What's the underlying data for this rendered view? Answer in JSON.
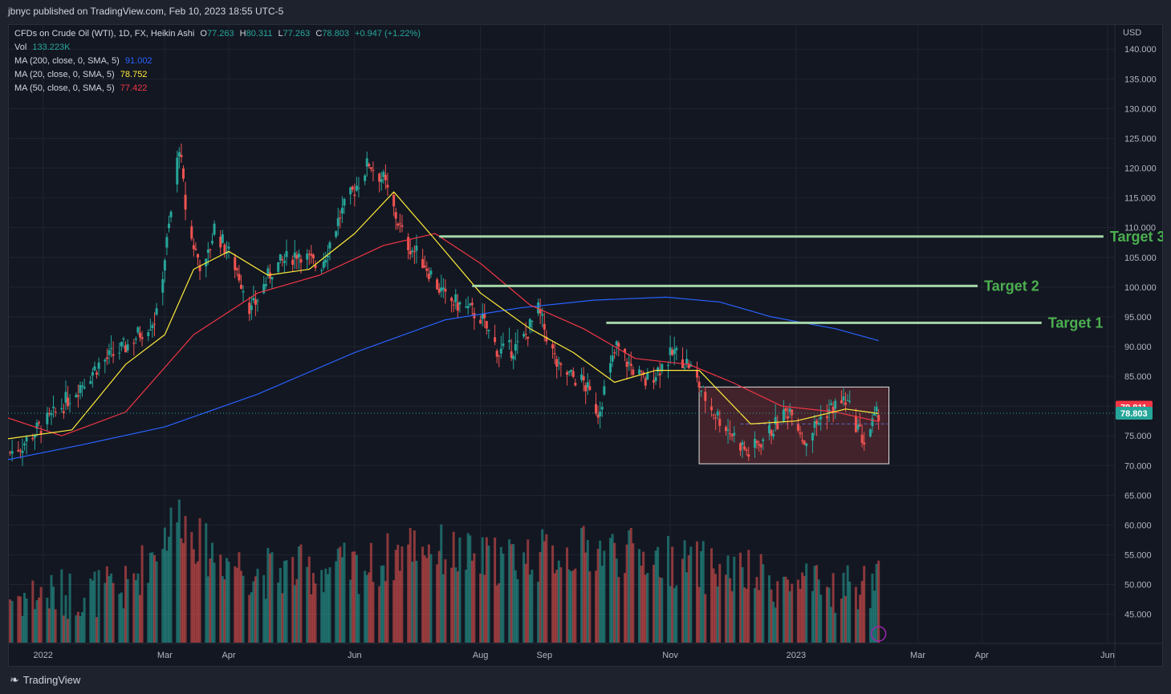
{
  "header": {
    "published": "jbnyc published on TradingView.com, Feb 10, 2023 18:55 UTC-5"
  },
  "legend": {
    "symbol": "CFDs on Crude Oil (WTI), 1D, FX, Heikin Ashi",
    "o_label": "O",
    "o_value": "77.263",
    "h_label": "H",
    "h_value": "80.311",
    "l_label": "L",
    "l_value": "77.263",
    "c_label": "C",
    "c_value": "78.803",
    "change": "+0.947 (+1.22%)",
    "vol_label": "Vol",
    "vol_value": "133.223K",
    "ma200_label": "MA (200, close, 0, SMA, 5)",
    "ma200_value": "91.002",
    "ma20_label": "MA (20, close, 0, SMA, 5)",
    "ma20_value": "78.752",
    "ma50_label": "MA (50, close, 0, SMA, 5)",
    "ma50_value": "77.422"
  },
  "footer": {
    "brand": "TradingView"
  },
  "colors": {
    "up": "#26a69a",
    "down": "#ef5350",
    "ma200": "#2962ff",
    "ma20": "#ffeb3b",
    "ma50": "#f23645",
    "target": "#a5d6a7",
    "target_text": "#4caf50"
  },
  "chart_data": {
    "type": "candlestick",
    "currency": "USD",
    "y_ticks": [
      "140.000",
      "135.000",
      "130.000",
      "125.000",
      "120.000",
      "115.000",
      "110.000",
      "105.000",
      "100.000",
      "95.000",
      "90.000",
      "85.000",
      "80.000",
      "75.000",
      "70.000",
      "65.000",
      "60.000",
      "55.000",
      "50.000",
      "45.000"
    ],
    "x_ticks": [
      "2022",
      "Mar",
      "Apr",
      "Jun",
      "Aug",
      "Sep",
      "Nov",
      "2023",
      "Mar",
      "Apr",
      "Jun"
    ],
    "ylim": [
      40.5,
      143
    ],
    "price_tags": [
      {
        "value": 79.811,
        "label": "79.811",
        "color": "#f23645"
      },
      {
        "value": 78.803,
        "label": "78.803",
        "color": "#26a69a"
      }
    ],
    "targets": [
      {
        "label": "Target 1",
        "value": 94.0,
        "from": "2022-10-01",
        "to": "2023-04-30"
      },
      {
        "label": "Target 2",
        "value": 100.2,
        "from": "2022-07-28",
        "to": "2023-03-30"
      },
      {
        "label": "Target 3",
        "value": 108.5,
        "from": "2022-07-12",
        "to": "2023-05-30"
      }
    ],
    "range_box": {
      "from": "2022-11-15",
      "to": "2023-02-15",
      "top": 83.2,
      "bottom": 70.3
    },
    "price_path": [
      [
        "2021-12-15",
        72
      ],
      [
        "2021-12-22",
        73.5
      ],
      [
        "2021-12-29",
        76
      ],
      [
        "2022-01-05",
        78
      ],
      [
        "2022-01-15",
        82
      ],
      [
        "2022-01-28",
        87
      ],
      [
        "2022-02-10",
        90
      ],
      [
        "2022-02-25",
        95
      ],
      [
        "2022-03-05",
        115
      ],
      [
        "2022-03-08",
        124
      ],
      [
        "2022-03-12",
        110
      ],
      [
        "2022-03-20",
        102
      ],
      [
        "2022-03-25",
        110
      ],
      [
        "2022-04-05",
        103
      ],
      [
        "2022-04-12",
        96
      ],
      [
        "2022-04-22",
        103
      ],
      [
        "2022-05-05",
        106
      ],
      [
        "2022-05-15",
        103
      ],
      [
        "2022-05-25",
        112
      ],
      [
        "2022-06-08",
        121
      ],
      [
        "2022-06-15",
        118
      ],
      [
        "2022-06-25",
        108
      ],
      [
        "2022-07-05",
        104
      ],
      [
        "2022-07-15",
        98
      ],
      [
        "2022-07-22",
        97
      ],
      [
        "2022-08-01",
        95
      ],
      [
        "2022-08-10",
        89
      ],
      [
        "2022-08-20",
        90
      ],
      [
        "2022-08-29",
        96
      ],
      [
        "2022-09-08",
        86
      ],
      [
        "2022-09-20",
        84
      ],
      [
        "2022-09-27",
        79
      ],
      [
        "2022-10-06",
        90
      ],
      [
        "2022-10-12",
        87
      ],
      [
        "2022-10-20",
        84
      ],
      [
        "2022-11-03",
        89
      ],
      [
        "2022-11-10",
        87
      ],
      [
        "2022-11-20",
        80
      ],
      [
        "2022-12-09",
        72
      ],
      [
        "2022-12-20",
        76
      ],
      [
        "2022-12-30",
        80
      ],
      [
        "2023-01-05",
        74
      ],
      [
        "2023-01-15",
        79
      ],
      [
        "2023-01-25",
        81
      ],
      [
        "2023-02-03",
        74
      ],
      [
        "2023-02-10",
        79
      ]
    ],
    "ma20_path": [
      [
        "2021-12-15",
        74.5
      ],
      [
        "2022-01-15",
        76
      ],
      [
        "2022-02-10",
        87
      ],
      [
        "2022-03-01",
        92
      ],
      [
        "2022-03-15",
        103
      ],
      [
        "2022-04-01",
        106
      ],
      [
        "2022-04-20",
        102
      ],
      [
        "2022-05-10",
        103
      ],
      [
        "2022-06-01",
        109
      ],
      [
        "2022-06-20",
        116
      ],
      [
        "2022-07-10",
        108
      ],
      [
        "2022-08-01",
        99
      ],
      [
        "2022-08-25",
        93
      ],
      [
        "2022-09-15",
        89
      ],
      [
        "2022-10-05",
        84
      ],
      [
        "2022-10-25",
        86
      ],
      [
        "2022-11-15",
        86
      ],
      [
        "2022-12-10",
        77
      ],
      [
        "2023-01-01",
        77.5
      ],
      [
        "2023-01-25",
        79.5
      ],
      [
        "2023-02-10",
        78.75
      ]
    ],
    "ma50_path": [
      [
        "2021-12-15",
        78
      ],
      [
        "2022-01-10",
        75
      ],
      [
        "2022-02-10",
        79
      ],
      [
        "2022-03-15",
        92
      ],
      [
        "2022-04-15",
        99
      ],
      [
        "2022-05-15",
        102
      ],
      [
        "2022-06-15",
        107
      ],
      [
        "2022-07-10",
        109
      ],
      [
        "2022-08-01",
        104
      ],
      [
        "2022-08-25",
        97
      ],
      [
        "2022-09-20",
        93
      ],
      [
        "2022-10-15",
        88
      ],
      [
        "2022-11-10",
        87
      ],
      [
        "2022-12-01",
        84
      ],
      [
        "2022-12-25",
        80
      ],
      [
        "2023-01-20",
        79
      ],
      [
        "2023-02-10",
        77.4
      ]
    ],
    "ma200_path": [
      [
        "2021-12-15",
        71
      ],
      [
        "2022-01-20",
        73.5
      ],
      [
        "2022-03-01",
        76.5
      ],
      [
        "2022-04-15",
        82
      ],
      [
        "2022-06-01",
        89
      ],
      [
        "2022-07-15",
        94.5
      ],
      [
        "2022-08-20",
        96.5
      ],
      [
        "2022-09-25",
        97.8
      ],
      [
        "2022-10-30",
        98.3
      ],
      [
        "2022-11-25",
        97.5
      ],
      [
        "2022-12-20",
        95
      ],
      [
        "2023-01-20",
        93
      ],
      [
        "2023-02-10",
        91
      ]
    ],
    "volume_path": [
      [
        "2021-12-15",
        48
      ],
      [
        "2022-02-10",
        49
      ],
      [
        "2022-03-08",
        62
      ],
      [
        "2022-03-20",
        56
      ],
      [
        "2022-04-15",
        52
      ],
      [
        "2022-06-10",
        53
      ],
      [
        "2022-06-30",
        57
      ],
      [
        "2022-08-01",
        54
      ],
      [
        "2022-09-01",
        55
      ],
      [
        "2022-10-01",
        56
      ],
      [
        "2022-11-01",
        54
      ],
      [
        "2022-12-01",
        52
      ],
      [
        "2023-01-10",
        49
      ],
      [
        "2023-02-10",
        50
      ]
    ]
  }
}
